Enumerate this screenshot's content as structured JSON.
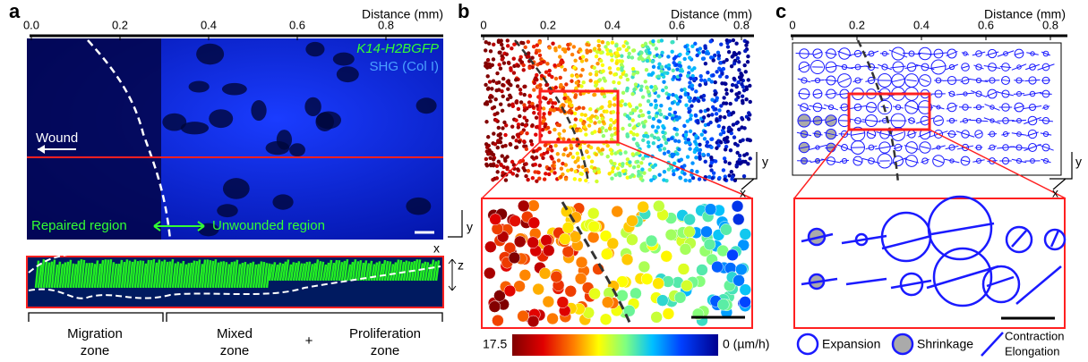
{
  "panels": [
    {
      "label": "a",
      "axis_title": "Distance (mm)",
      "ticks": [
        "0.0",
        "0.2",
        "0.4",
        "0.6",
        "0.8"
      ],
      "legend": [
        "K14-H2BGFP",
        "SHG (Col I)"
      ],
      "annotations": {
        "wound": "Wound",
        "repaired": "Repaired region",
        "unwounded": "Unwounded region"
      },
      "axes": {
        "y": "y",
        "x": "x",
        "z": "z"
      },
      "zones": [
        {
          "lines": [
            "Migration",
            "zone"
          ]
        },
        {
          "lines": [
            "Mixed",
            "zone"
          ]
        },
        {
          "lines": [
            "+"
          ]
        },
        {
          "lines": [
            "Proliferation",
            "zone"
          ]
        }
      ]
    },
    {
      "label": "b",
      "axis_title": "Distance (mm)",
      "ticks": [
        "0",
        "0.2",
        "0.4",
        "0.6",
        "0.8"
      ],
      "axes": {
        "y": "y",
        "x": "x"
      },
      "colorbar": {
        "max": "17.5",
        "min": "0 (µm/h)"
      }
    },
    {
      "label": "c",
      "axis_title": "Distance (mm)",
      "ticks": [
        "0",
        "0.2",
        "0.4",
        "0.6",
        "0.8"
      ],
      "axes": {
        "y": "y",
        "x": "x"
      },
      "legend": [
        "Expansion",
        "Shrinkage",
        "Contraction",
        "Elongation"
      ]
    }
  ]
}
